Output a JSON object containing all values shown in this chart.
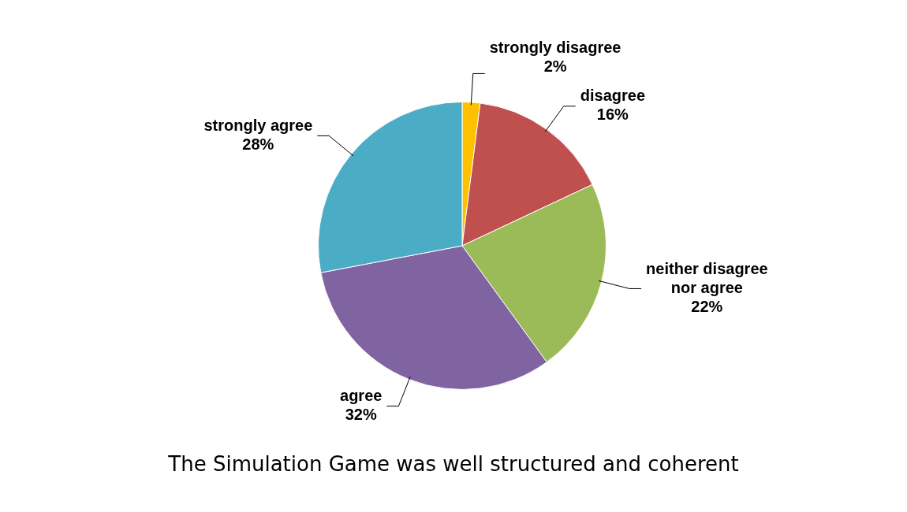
{
  "chart_data": {
    "type": "pie",
    "title": "The Simulation Game was well structured and coherent",
    "categories": [
      "strongly disagree",
      "disagree",
      "neither disagree nor agree",
      "agree",
      "strongly agree"
    ],
    "values": [
      2,
      16,
      22,
      32,
      28
    ],
    "colors": [
      "#ffc000",
      "#c0504d",
      "#9bbb59",
      "#8064a2",
      "#4bacc6"
    ],
    "value_labels": [
      "2%",
      "16%",
      "22%",
      "32%",
      "28%"
    ],
    "legend": false
  }
}
